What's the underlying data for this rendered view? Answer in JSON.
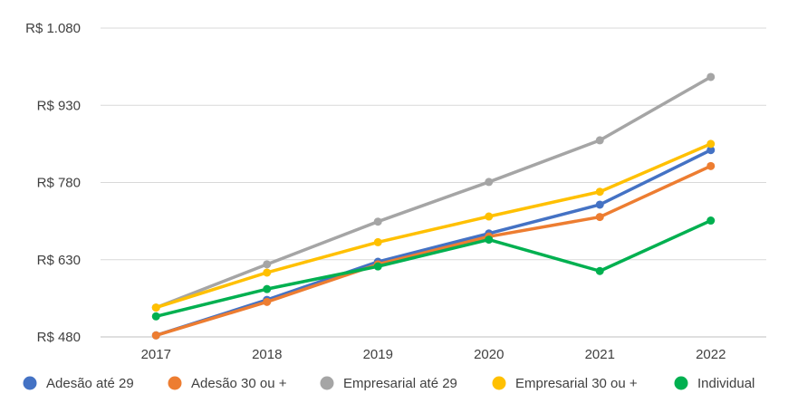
{
  "chart_data": {
    "type": "line",
    "title": "",
    "xlabel": "",
    "ylabel": "",
    "categories": [
      "2017",
      "2018",
      "2019",
      "2020",
      "2021",
      "2022"
    ],
    "ylim": [
      480,
      1080
    ],
    "yticks": [
      480,
      630,
      780,
      930,
      1080
    ],
    "ytick_labels": [
      "R$ 480",
      "R$ 630",
      "R$ 780",
      "R$ 930",
      "R$ 1.080"
    ],
    "grid": "horizontal",
    "legend_position": "bottom",
    "series": [
      {
        "name": "Adesão até 29",
        "color": "#4472C4",
        "values": [
          483,
          552,
          626,
          681,
          737,
          843
        ]
      },
      {
        "name": "Adesão 30 ou +",
        "color": "#ED7D31",
        "values": [
          483,
          548,
          621,
          675,
          713,
          812
        ]
      },
      {
        "name": "Empresarial até 29",
        "color": "#A5A5A5",
        "values": [
          537,
          621,
          704,
          781,
          862,
          985
        ]
      },
      {
        "name": "Empresarial 30 ou +",
        "color": "#FFC000",
        "values": [
          537,
          605,
          664,
          714,
          762,
          855
        ]
      },
      {
        "name": "Individual",
        "color": "#00B050",
        "values": [
          520,
          573,
          617,
          669,
          608,
          706
        ]
      }
    ]
  }
}
